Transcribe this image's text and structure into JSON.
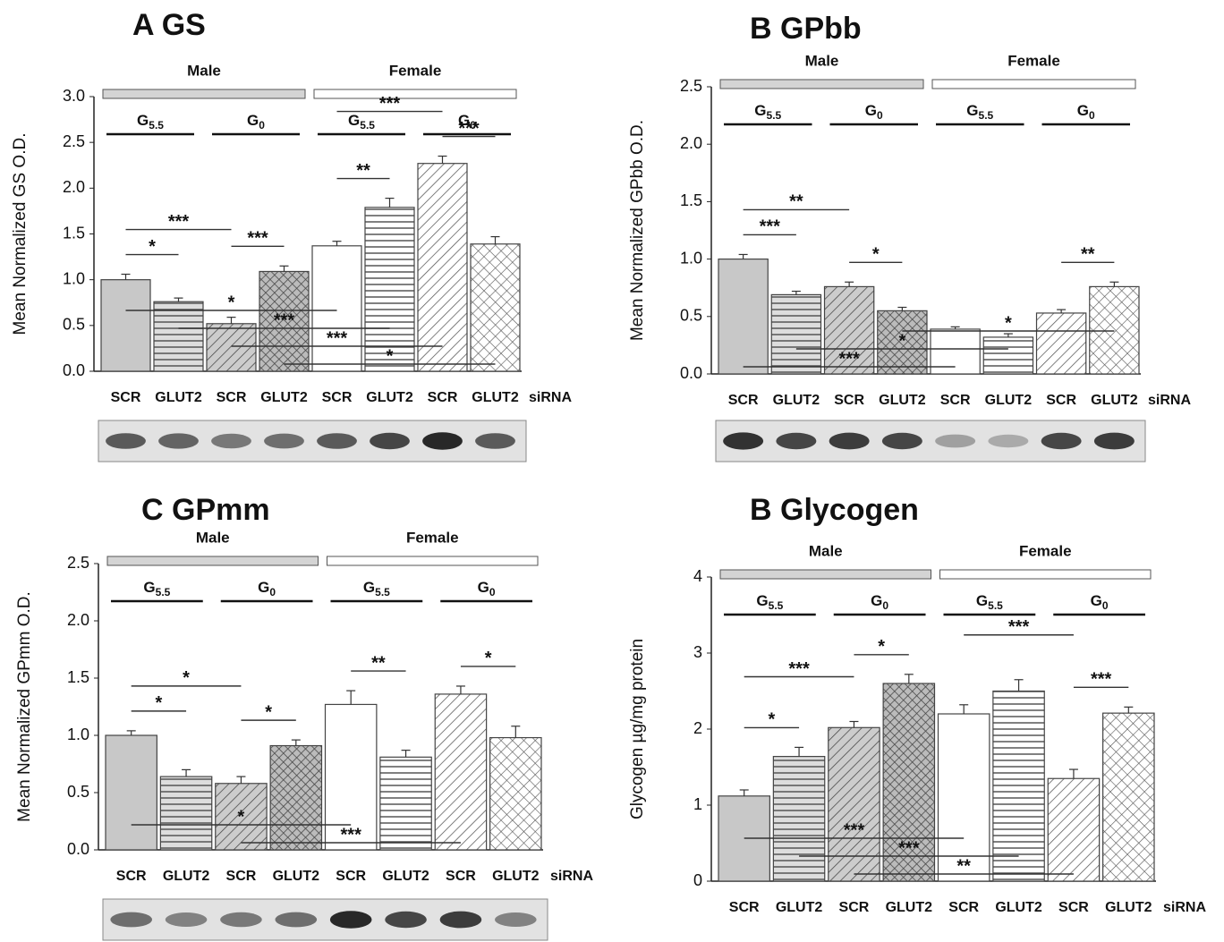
{
  "chart_data": [
    {
      "type": "bar",
      "title": "A  GS",
      "y_label": "Mean Normalized GS O.D.",
      "x_label": "siRNA",
      "categories": [
        "SCR",
        "GLUT2",
        "SCR",
        "GLUT2",
        "SCR",
        "GLUT2",
        "SCR",
        "GLUT2"
      ],
      "values": [
        1.0,
        0.76,
        0.52,
        1.09,
        1.37,
        1.79,
        2.27,
        1.39
      ],
      "errors": [
        0.06,
        0.04,
        0.07,
        0.06,
        0.05,
        0.1,
        0.08,
        0.08
      ],
      "groups": [
        "Male",
        "Female"
      ],
      "subgroups": [
        {
          "symbol": "G",
          "subscript": "5.5"
        },
        {
          "symbol": "G",
          "subscript": "0"
        },
        {
          "symbol": "G",
          "subscript": "5.5"
        },
        {
          "symbol": "G",
          "subscript": "0"
        }
      ],
      "ylim": [
        0,
        3
      ],
      "yticks": [
        {
          "value": 0,
          "label": "0.0"
        },
        {
          "value": 0.5,
          "label": "0.5"
        },
        {
          "value": 1,
          "label": "1.0"
        },
        {
          "value": 1.5,
          "label": "1.5"
        },
        {
          "value": 2,
          "label": "2.0"
        },
        {
          "value": 2.5,
          "label": "2.5"
        },
        {
          "value": 3,
          "label": "3.0"
        }
      ],
      "significance": [
        {
          "text": "*",
          "between": [
            0,
            1
          ]
        },
        {
          "text": "***",
          "between": [
            0,
            2
          ]
        },
        {
          "text": "***",
          "between": [
            2,
            3
          ]
        },
        {
          "text": "**",
          "between": [
            4,
            5
          ]
        },
        {
          "text": "***",
          "between": [
            4,
            6
          ]
        },
        {
          "text": "***",
          "between": [
            6,
            7
          ]
        },
        {
          "text": "*",
          "between": [
            3,
            7
          ]
        },
        {
          "text": "***",
          "between": [
            2,
            6
          ]
        },
        {
          "text": "***",
          "between": [
            1,
            5
          ]
        },
        {
          "text": "*",
          "between": [
            0,
            4
          ]
        }
      ]
    },
    {
      "type": "bar",
      "title": "B  GPbb",
      "y_label": "Mean Normalized GPbb O.D.",
      "x_label": "siRNA",
      "categories": [
        "SCR",
        "GLUT2",
        "SCR",
        "GLUT2",
        "SCR",
        "GLUT2",
        "SCR",
        "GLUT2"
      ],
      "values": [
        1.0,
        0.69,
        0.76,
        0.55,
        0.39,
        0.32,
        0.53,
        0.76
      ],
      "errors": [
        0.04,
        0.03,
        0.04,
        0.03,
        0.02,
        0.03,
        0.03,
        0.04
      ],
      "groups": [
        "Male",
        "Female"
      ],
      "subgroups": [
        {
          "symbol": "G",
          "subscript": "5.5"
        },
        {
          "symbol": "G",
          "subscript": "0"
        },
        {
          "symbol": "G",
          "subscript": "5.5"
        },
        {
          "symbol": "G",
          "subscript": "0"
        }
      ],
      "ylim": [
        0,
        2.5
      ],
      "yticks": [
        {
          "value": 0,
          "label": "0.0"
        },
        {
          "value": 0.5,
          "label": "0.5"
        },
        {
          "value": 1,
          "label": "1.0"
        },
        {
          "value": 1.5,
          "label": "1.5"
        },
        {
          "value": 2,
          "label": "2.0"
        },
        {
          "value": 2.5,
          "label": "2.5"
        }
      ],
      "significance": [
        {
          "text": "***",
          "between": [
            0,
            1
          ]
        },
        {
          "text": "**",
          "between": [
            0,
            2
          ]
        },
        {
          "text": "*",
          "between": [
            2,
            3
          ]
        },
        {
          "text": "**",
          "between": [
            6,
            7
          ]
        },
        {
          "text": "***",
          "between": [
            0,
            4
          ]
        },
        {
          "text": "*",
          "between": [
            1,
            5
          ]
        },
        {
          "text": "*",
          "between": [
            3,
            7
          ]
        }
      ]
    },
    {
      "type": "bar",
      "title": "C  GPmm",
      "y_label": "Mean Normalized GPmm O.D.",
      "x_label": "siRNA",
      "categories": [
        "SCR",
        "GLUT2",
        "SCR",
        "GLUT2",
        "SCR",
        "GLUT2",
        "SCR",
        "GLUT2"
      ],
      "values": [
        1.0,
        0.64,
        0.58,
        0.91,
        1.27,
        0.81,
        1.36,
        0.98
      ],
      "errors": [
        0.04,
        0.06,
        0.06,
        0.05,
        0.12,
        0.06,
        0.07,
        0.1
      ],
      "groups": [
        "Male",
        "Female"
      ],
      "subgroups": [
        {
          "symbol": "G",
          "subscript": "5.5"
        },
        {
          "symbol": "G",
          "subscript": "0"
        },
        {
          "symbol": "G",
          "subscript": "5.5"
        },
        {
          "symbol": "G",
          "subscript": "0"
        }
      ],
      "ylim": [
        0,
        2.5
      ],
      "yticks": [
        {
          "value": 0,
          "label": "0.0"
        },
        {
          "value": 0.5,
          "label": "0.5"
        },
        {
          "value": 1,
          "label": "1.0"
        },
        {
          "value": 1.5,
          "label": "1.5"
        },
        {
          "value": 2,
          "label": "2.0"
        },
        {
          "value": 2.5,
          "label": "2.5"
        }
      ],
      "significance": [
        {
          "text": "*",
          "between": [
            0,
            1
          ]
        },
        {
          "text": "*",
          "between": [
            0,
            2
          ]
        },
        {
          "text": "*",
          "between": [
            2,
            3
          ]
        },
        {
          "text": "**",
          "between": [
            4,
            5
          ]
        },
        {
          "text": "*",
          "between": [
            6,
            7
          ]
        },
        {
          "text": "***",
          "between": [
            2,
            6
          ]
        },
        {
          "text": "*",
          "between": [
            0,
            4
          ]
        }
      ]
    },
    {
      "type": "bar",
      "title": "B  Glycogen",
      "y_label": "Glycogen µg/mg protein",
      "x_label": "siRNA",
      "categories": [
        "SCR",
        "GLUT2",
        "SCR",
        "GLUT2",
        "SCR",
        "GLUT2",
        "SCR",
        "GLUT2"
      ],
      "values": [
        1.12,
        1.64,
        2.02,
        2.6,
        2.2,
        2.5,
        1.35,
        2.21
      ],
      "errors": [
        0.08,
        0.12,
        0.08,
        0.12,
        0.12,
        0.15,
        0.12,
        0.08
      ],
      "groups": [
        "Male",
        "Female"
      ],
      "subgroups": [
        {
          "symbol": "G",
          "subscript": "5.5"
        },
        {
          "symbol": "G",
          "subscript": "0"
        },
        {
          "symbol": "G",
          "subscript": "5.5"
        },
        {
          "symbol": "G",
          "subscript": "0"
        }
      ],
      "ylim": [
        0,
        4
      ],
      "yticks": [
        0,
        1,
        2,
        3,
        4
      ],
      "significance": [
        {
          "text": "*",
          "between": [
            0,
            1
          ]
        },
        {
          "text": "***",
          "between": [
            0,
            2
          ]
        },
        {
          "text": "*",
          "between": [
            2,
            3
          ]
        },
        {
          "text": "***",
          "between": [
            4,
            6
          ]
        },
        {
          "text": "***",
          "between": [
            6,
            7
          ]
        },
        {
          "text": "**",
          "between": [
            2,
            6
          ]
        },
        {
          "text": "***",
          "between": [
            1,
            5
          ]
        },
        {
          "text": "***",
          "between": [
            0,
            4
          ]
        }
      ]
    }
  ]
}
